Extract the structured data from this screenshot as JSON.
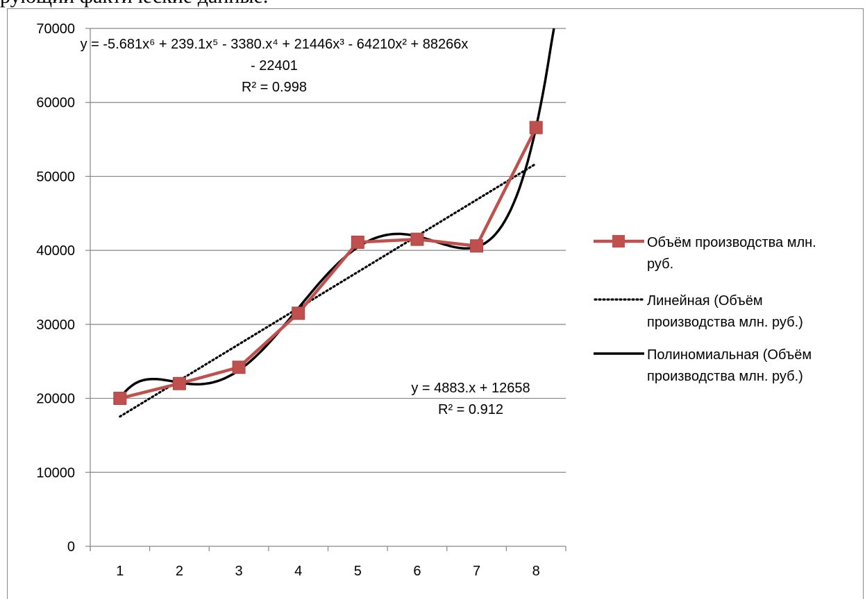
{
  "page": {
    "top_text": "рующий фактические данные."
  },
  "chart_data": {
    "type": "line",
    "categories": [
      1,
      2,
      3,
      4,
      5,
      6,
      7,
      8
    ],
    "ylim": [
      0,
      70000
    ],
    "yticks": [
      0,
      10000,
      20000,
      30000,
      40000,
      50000,
      60000,
      70000
    ],
    "grid": "horizontal",
    "legend_position": "right",
    "series": [
      {
        "name": "Объём производства млн. руб.",
        "values": [
          20000,
          22000,
          24200,
          31500,
          41100,
          41500,
          40600,
          56600
        ],
        "color": "#c0504d",
        "marker": "square"
      }
    ],
    "trendlines": [
      {
        "name": "Линейная (Объём производства млн. руб.)",
        "kind": "linear",
        "coefficients": [
          4883,
          12658
        ],
        "color": "#000000",
        "style": "dotted",
        "equation_lines": [
          "y = 4883.x + 12658"
        ],
        "r2_text": "R² = 0.912"
      },
      {
        "name": "Полиномиальная (Объём производства млн. руб.)",
        "kind": "polynomial",
        "color": "#000000",
        "style": "solid",
        "equation_lines": [
          "y = -5.681x⁶ + 239.1x⁵ - 3380.x⁴ + 21446x³ - 64210x² + 88266x",
          "- 22401"
        ],
        "r2_text": "R² = 0.998"
      }
    ],
    "legend_lines": {
      "series": [
        "Объём производства млн.",
        "руб."
      ],
      "linear": [
        "Линейная (Объём",
        "производства млн. руб.)"
      ],
      "poly": [
        "Полиномиальная (Объём",
        "производства млн. руб.)"
      ]
    }
  }
}
